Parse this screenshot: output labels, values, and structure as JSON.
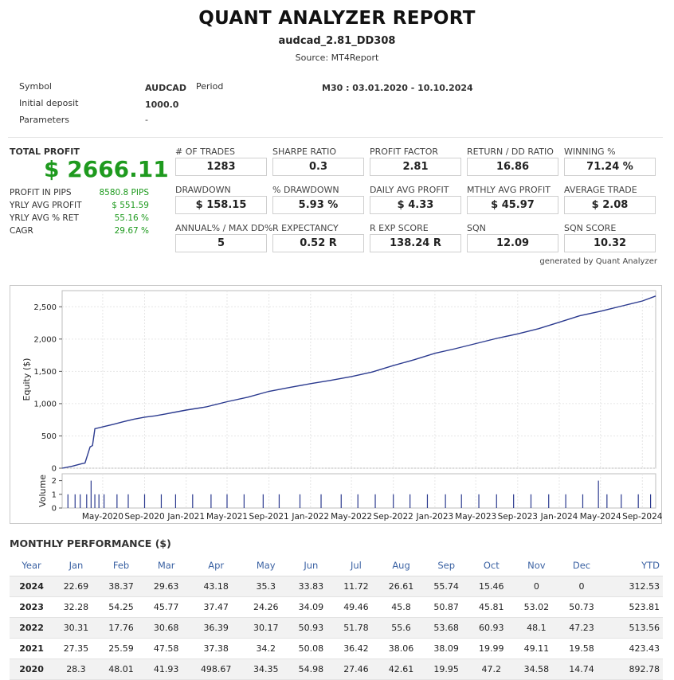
{
  "header": {
    "title": "QUANT ANALYZER REPORT",
    "subtitle": "audcad_2.81_DD308",
    "source": "Source: MT4Report"
  },
  "info": {
    "symbol_label": "Symbol",
    "symbol_value": "AUDCAD",
    "period_label": "Period",
    "period_value": "M30 : 03.01.2020 - 10.10.2024",
    "deposit_label": "Initial deposit",
    "deposit_value": "1000.0",
    "params_label": "Parameters",
    "params_value": "-"
  },
  "summary": {
    "total_profit_label": "TOTAL PROFIT",
    "total_profit_value": "$ 2666.11",
    "stats": [
      {
        "label": "PROFIT IN PIPS",
        "value": "8580.8 PIPS"
      },
      {
        "label": "YRLY AVG PROFIT",
        "value": "$ 551.59"
      },
      {
        "label": "YRLY AVG % RET",
        "value": "55.16 %"
      },
      {
        "label": "CAGR",
        "value": "29.67 %"
      }
    ],
    "metrics": [
      {
        "label": "# OF TRADES",
        "value": "1283"
      },
      {
        "label": "SHARPE RATIO",
        "value": "0.3"
      },
      {
        "label": "PROFIT FACTOR",
        "value": "2.81"
      },
      {
        "label": "RETURN / DD RATIO",
        "value": "16.86"
      },
      {
        "label": "WINNING %",
        "value": "71.24 %"
      },
      {
        "label": "DRAWDOWN",
        "value": "$ 158.15"
      },
      {
        "label": "% DRAWDOWN",
        "value": "5.93 %"
      },
      {
        "label": "DAILY AVG PROFIT",
        "value": "$ 4.33"
      },
      {
        "label": "MTHLY AVG PROFIT",
        "value": "$ 45.97"
      },
      {
        "label": "AVERAGE TRADE",
        "value": "$ 2.08"
      },
      {
        "label": "ANNUAL% / MAX DD%",
        "value": "5"
      },
      {
        "label": "R EXPECTANCY",
        "value": "0.52 R"
      },
      {
        "label": "R EXP SCORE",
        "value": "138.24 R"
      },
      {
        "label": "SQN",
        "value": "12.09"
      },
      {
        "label": "SQN SCORE",
        "value": "10.32"
      }
    ],
    "generated_by": "generated by Quant Analyzer"
  },
  "chart_data": {
    "type": "line",
    "ylabel": "Equity ($)",
    "yticks": [
      "0",
      "500",
      "1,000",
      "1,500",
      "2,000",
      "2,500"
    ],
    "ylim": [
      0,
      2750
    ],
    "volume_ylabel": "Volume",
    "volume_yticks": [
      "0",
      "1",
      "2"
    ],
    "volume_ylim": [
      0,
      2.5
    ],
    "xlim": [
      "2020-01-03",
      "2024-10-10"
    ],
    "xticks": [
      "May-2020",
      "Sep-2020",
      "Jan-2021",
      "May-2021",
      "Sep-2021",
      "Jan-2022",
      "May-2022",
      "Sep-2022",
      "Jan-2023",
      "May-2023",
      "Sep-2023",
      "Jan-2024",
      "May-2024",
      "Sep-2024"
    ],
    "series": [
      {
        "x": [
          "2020-01-03",
          "2020-02-01",
          "2020-03-01",
          "2020-03-10",
          "2020-03-25",
          "2020-04-01",
          "2020-04-08",
          "2020-05-01",
          "2020-06-01",
          "2020-07-01",
          "2020-08-01",
          "2020-09-01",
          "2020-10-01",
          "2020-11-01",
          "2020-12-01",
          "2021-01-01",
          "2021-03-01",
          "2021-05-01",
          "2021-07-01",
          "2021-09-01",
          "2021-11-01",
          "2022-01-01",
          "2022-03-01",
          "2022-05-01",
          "2022-07-01",
          "2022-09-01",
          "2022-11-01",
          "2023-01-01",
          "2023-03-01",
          "2023-05-01",
          "2023-07-01",
          "2023-09-01",
          "2023-11-01",
          "2024-01-01",
          "2024-03-01",
          "2024-05-01",
          "2024-07-01",
          "2024-09-01",
          "2024-10-10"
        ],
        "y": [
          0,
          30,
          70,
          80,
          330,
          350,
          610,
          640,
          680,
          720,
          760,
          790,
          810,
          840,
          870,
          900,
          950,
          1030,
          1100,
          1190,
          1250,
          1310,
          1360,
          1420,
          1490,
          1590,
          1680,
          1780,
          1850,
          1930,
          2010,
          2080,
          2160,
          2260,
          2360,
          2430,
          2510,
          2590,
          2666
        ]
      }
    ],
    "volume": {
      "x": [
        "2020-01-20",
        "2020-02-10",
        "2020-02-25",
        "2020-03-15",
        "2020-03-28",
        "2020-04-08",
        "2020-04-20",
        "2020-05-05",
        "2020-06-12",
        "2020-07-15",
        "2020-09-01",
        "2020-10-20",
        "2020-12-01",
        "2021-01-20",
        "2021-03-15",
        "2021-05-01",
        "2021-06-20",
        "2021-08-15",
        "2021-10-01",
        "2021-12-01",
        "2022-02-01",
        "2022-04-01",
        "2022-05-20",
        "2022-07-10",
        "2022-09-01",
        "2022-10-20",
        "2022-12-10",
        "2023-02-01",
        "2023-03-20",
        "2023-05-10",
        "2023-07-01",
        "2023-08-20",
        "2023-10-10",
        "2023-12-01",
        "2024-01-20",
        "2024-03-10",
        "2024-04-25",
        "2024-05-20",
        "2024-07-01",
        "2024-08-20",
        "2024-09-25"
      ],
      "y": [
        1,
        1,
        1,
        1,
        2,
        1,
        1,
        1,
        1,
        1,
        1,
        1,
        1,
        1,
        1,
        1,
        1,
        1,
        1,
        1,
        1,
        1,
        1,
        1,
        1,
        1,
        1,
        1,
        1,
        1,
        1,
        1,
        1,
        1,
        1,
        1,
        2,
        1,
        1,
        1,
        1
      ]
    }
  },
  "monthly": {
    "title": "MONTHLY PERFORMANCE ($)",
    "headers": [
      "Year",
      "Jan",
      "Feb",
      "Mar",
      "Apr",
      "May",
      "Jun",
      "Jul",
      "Aug",
      "Sep",
      "Oct",
      "Nov",
      "Dec",
      "YTD"
    ],
    "rows": [
      [
        "2024",
        "22.69",
        "38.37",
        "29.63",
        "43.18",
        "35.3",
        "33.83",
        "11.72",
        "26.61",
        "55.74",
        "15.46",
        "0",
        "0",
        "312.53"
      ],
      [
        "2023",
        "32.28",
        "54.25",
        "45.77",
        "37.47",
        "24.26",
        "34.09",
        "49.46",
        "45.8",
        "50.87",
        "45.81",
        "53.02",
        "50.73",
        "523.81"
      ],
      [
        "2022",
        "30.31",
        "17.76",
        "30.68",
        "36.39",
        "30.17",
        "50.93",
        "51.78",
        "55.6",
        "53.68",
        "60.93",
        "48.1",
        "47.23",
        "513.56"
      ],
      [
        "2021",
        "27.35",
        "25.59",
        "47.58",
        "37.38",
        "34.2",
        "50.08",
        "36.42",
        "38.06",
        "38.09",
        "19.99",
        "49.11",
        "19.58",
        "423.43"
      ],
      [
        "2020",
        "28.3",
        "48.01",
        "41.93",
        "498.67",
        "34.35",
        "54.98",
        "27.46",
        "42.61",
        "19.95",
        "47.2",
        "34.58",
        "14.74",
        "892.78"
      ]
    ]
  }
}
